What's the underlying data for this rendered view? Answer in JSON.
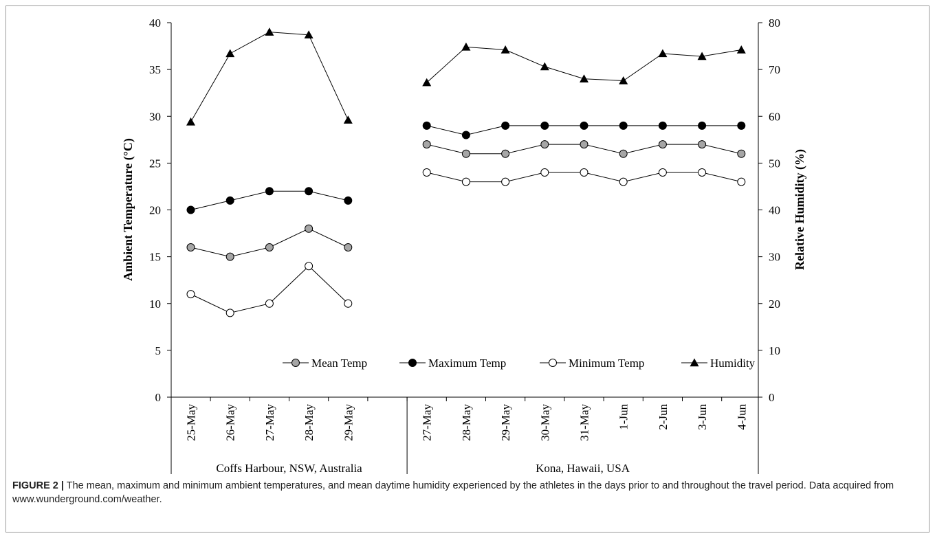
{
  "caption": {
    "label": "FIGURE 2 |",
    "text": "The mean, maximum and minimum ambient temperatures, and mean daytime humidity experienced by the athletes in the days prior to and throughout the travel period. Data acquired from www.wunderground.com/weather."
  },
  "chart_data": {
    "type": "line",
    "title": "",
    "ylabel": "Ambient Temperature (°C)",
    "y2label": "Relative Humidity (%)",
    "ylim": [
      0,
      40
    ],
    "y2lim": [
      0,
      80
    ],
    "yticks": [
      "0",
      "5",
      "10",
      "15",
      "20",
      "25",
      "30",
      "35",
      "40"
    ],
    "y2ticks": [
      "0",
      "10",
      "20",
      "30",
      "40",
      "50",
      "60",
      "70",
      "80"
    ],
    "legend_position": "bottom-center inside plot",
    "groups": [
      {
        "name": "Coffs Harbour, NSW, Australia",
        "categories": [
          "25-May",
          "26-May",
          "27-May",
          "28-May",
          "29-May"
        ],
        "series": {
          "mean": [
            16,
            15,
            16,
            18,
            16
          ],
          "max": [
            20,
            21,
            22,
            22,
            21
          ],
          "min": [
            11,
            9,
            10,
            14,
            10
          ],
          "humidity": [
            58.8,
            73.4,
            78,
            77.4,
            59.2
          ]
        }
      },
      {
        "name": "Kona, Hawaii, USA",
        "categories": [
          "27-May",
          "28-May",
          "29-May",
          "30-May",
          "31-May",
          "1-Jun",
          "2-Jun",
          "3-Jun",
          "4-Jun"
        ],
        "series": {
          "mean": [
            27,
            26,
            26,
            27,
            27,
            26,
            27,
            27,
            26
          ],
          "max": [
            29,
            28,
            29,
            29,
            29,
            29,
            29,
            29,
            29
          ],
          "min": [
            24,
            23,
            23,
            24,
            24,
            23,
            24,
            24,
            23
          ],
          "humidity": [
            67.2,
            74.8,
            74.2,
            70.6,
            68,
            67.6,
            73.4,
            72.8,
            74.2
          ]
        }
      }
    ],
    "legend": [
      {
        "key": "mean",
        "label": "Mean Temp",
        "marker": "circle-gray",
        "axis": "left"
      },
      {
        "key": "max",
        "label": "Maximum Temp",
        "marker": "circle-black",
        "axis": "left"
      },
      {
        "key": "min",
        "label": "Minimum Temp",
        "marker": "circle-white",
        "axis": "left"
      },
      {
        "key": "humidity",
        "label": "Humidity",
        "marker": "triangle-black",
        "axis": "right"
      }
    ],
    "colors": {
      "mean_fill": "#a6a6a6",
      "max_fill": "#000000",
      "min_fill": "#ffffff",
      "line": "#000000"
    }
  }
}
